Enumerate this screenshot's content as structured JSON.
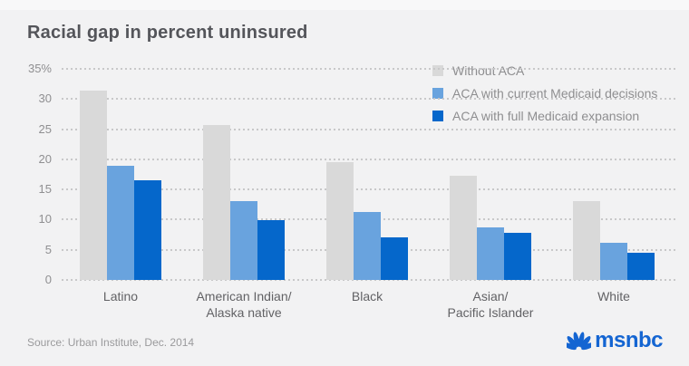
{
  "page": {
    "title": "Racial gap in percent uninsured",
    "source": "Source: Urban Institute, Dec. 2014",
    "brand": "msnbc",
    "brand_color": "#1465d2",
    "background_color": "#f2f2f3",
    "icons": {
      "brand_logo": "nbc-peacock-icon"
    }
  },
  "chart_data": {
    "type": "bar",
    "title": "Racial gap in percent uninsured",
    "xlabel": "",
    "ylabel": "",
    "ylim": [
      0,
      35
    ],
    "grid": "dotted horizontal gridlines",
    "legend_position": "top-right",
    "yticks": [
      {
        "value": 35,
        "label": "35%"
      },
      {
        "value": 30,
        "label": "30"
      },
      {
        "value": 25,
        "label": "25"
      },
      {
        "value": 20,
        "label": "20"
      },
      {
        "value": 15,
        "label": "15"
      },
      {
        "value": 10,
        "label": "10"
      },
      {
        "value": 5,
        "label": "5"
      },
      {
        "value": 0,
        "label": "0"
      }
    ],
    "categories": [
      [
        "Latino"
      ],
      [
        "American Indian/",
        "Alaska native"
      ],
      [
        "Black"
      ],
      [
        "Asian/",
        "Pacific Islander"
      ],
      [
        "White"
      ]
    ],
    "series": [
      {
        "name": "Without ACA",
        "color": "#d9d9d9",
        "values": [
          31.4,
          25.7,
          19.5,
          17.2,
          13.0
        ]
      },
      {
        "name": "ACA with current Medicaid decisions",
        "color": "#69a3de",
        "values": [
          19.0,
          13.0,
          11.2,
          8.7,
          6.2
        ]
      },
      {
        "name": "ACA with full Medicaid expansion",
        "color": "#0567cb",
        "values": [
          16.5,
          9.9,
          7.0,
          7.8,
          4.5
        ]
      }
    ]
  }
}
